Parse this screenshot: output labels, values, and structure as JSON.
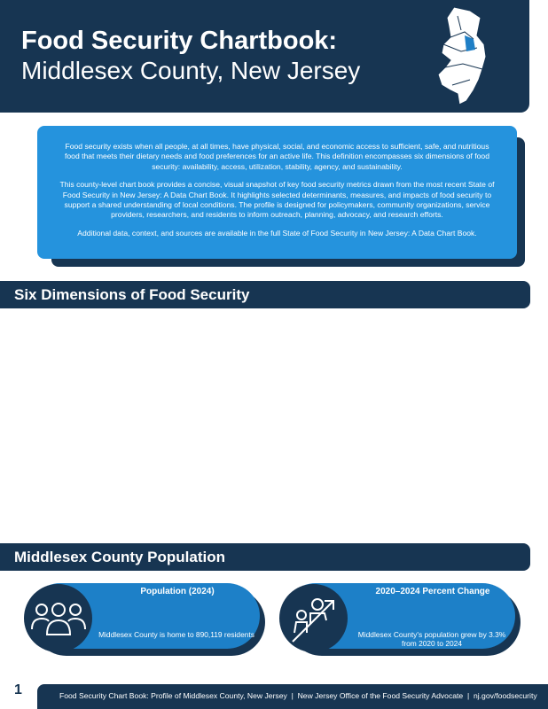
{
  "header": {
    "title_line1": "Food Security Chartbook:",
    "title_line2": "Middlesex County, New Jersey"
  },
  "intro": {
    "paragraphs": [
      "Food security exists when all people, at all times, have physical, social, and economic access to sufficient, safe, and nutritious food that meets their dietary needs and food preferences for an active life. This definition encompasses six dimensions of food security: availability, access, utilization, stability, agency, and sustainability.",
      "This county-level chart book provides a concise, visual snapshot of key food security metrics drawn from the most recent State of Food Security in New Jersey: A Data Chart Book. It highlights selected determinants, measures, and impacts of food security to support a shared understanding of local conditions. The profile is designed for policymakers, community organizations, service providers, researchers, and residents to inform outreach, planning, advocacy, and research efforts.",
      "Additional data, context, and sources are available in the full State of Food Security in New Jersey: A Data Chart Book."
    ]
  },
  "sections": {
    "dimensions": "Six Dimensions of Food Security",
    "population": "Middlesex County Population"
  },
  "cards": [
    {
      "title": "Population (2024)",
      "text": "Middlesex County is home to 890,119 residents",
      "icon": "people-group-icon"
    },
    {
      "title": "2020–2024 Percent Change",
      "text": "Middlesex County's population grew by 3.3% from 2020 to 2024",
      "icon": "population-growth-icon"
    }
  ],
  "footer": {
    "page_number": "1",
    "text": "Food Security Chart Book: Profile of Middlesex County, New Jersey  |  New Jersey Office of the Food Security Advocate  |  nj.gov/foodsecurity"
  },
  "colors": {
    "navy": "#173552",
    "blue": "#2593dd",
    "highlight": "#1f7fc6"
  }
}
